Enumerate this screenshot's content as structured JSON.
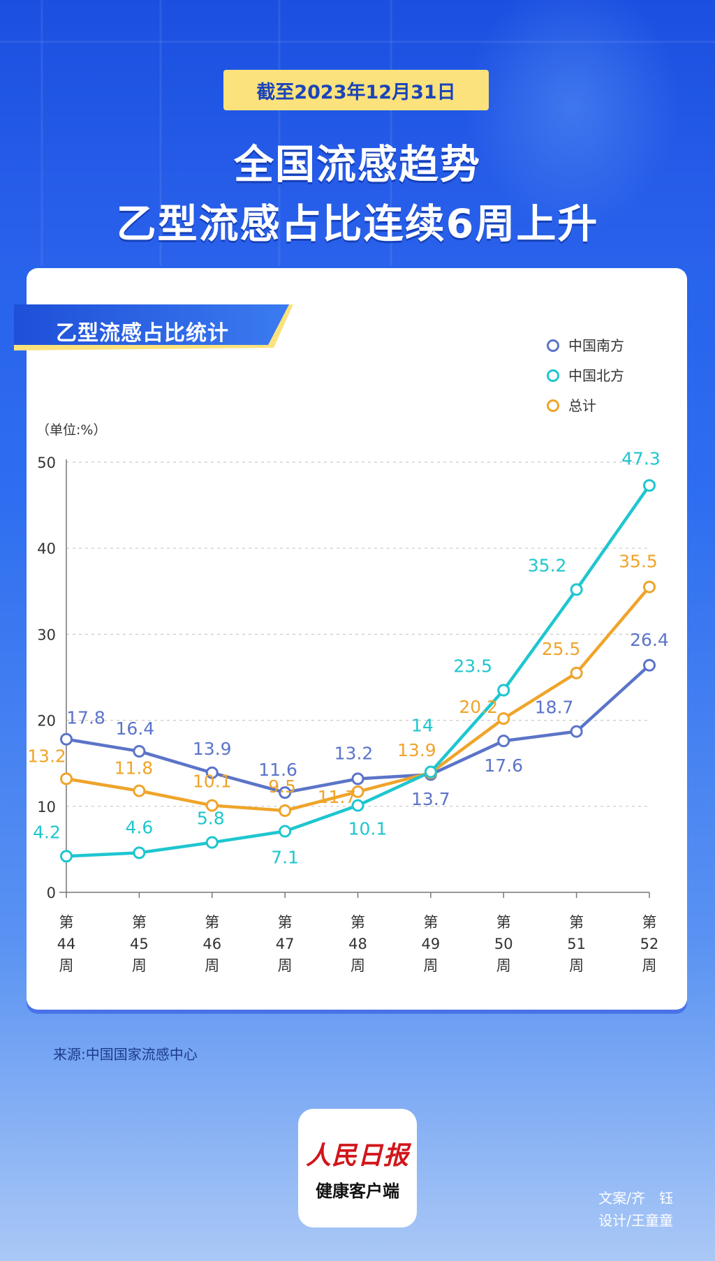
{
  "header": {
    "date_label": "截至2023年12月31日",
    "title_line1": "全国流感趋势",
    "title_line2": "乙型流感占比连续6周上升"
  },
  "card": {
    "banner_label": "乙型流感占比统计"
  },
  "footer": {
    "source": "来源:中国国家流感中心",
    "logo_top": "人民日报",
    "logo_bottom": "健康客户端",
    "credit_writer": "文案/齐　钰",
    "credit_designer": "设计/王童童"
  },
  "colors": {
    "south": "#5b74c8",
    "north": "#1ec6cf",
    "total": "#efa42a",
    "accent_blue": "#2563eb",
    "pill_yellow": "#fbe27c"
  },
  "chart_data": {
    "type": "line",
    "unit_label": "（单位:%）",
    "categories": [
      [
        "第",
        "44",
        "周"
      ],
      [
        "第",
        "45",
        "周"
      ],
      [
        "第",
        "46",
        "周"
      ],
      [
        "第",
        "47",
        "周"
      ],
      [
        "第",
        "48",
        "周"
      ],
      [
        "第",
        "49",
        "周"
      ],
      [
        "第",
        "50",
        "周"
      ],
      [
        "第",
        "51",
        "周"
      ],
      [
        "第",
        "52",
        "周"
      ]
    ],
    "yticks": [
      0,
      10,
      20,
      30,
      40,
      50
    ],
    "ylim": [
      0,
      50
    ],
    "grid": true,
    "legend_position": "top-right",
    "series": [
      {
        "key": "south",
        "name": "中国南方",
        "color": "#5b74c8",
        "values": [
          17.8,
          16.4,
          13.9,
          11.6,
          13.2,
          13.7,
          17.6,
          18.7,
          26.4
        ],
        "labels": [
          "17.8",
          "16.4",
          "13.9",
          "11.6",
          "13.2",
          "13.7",
          "17.6",
          "18.7",
          "26.4"
        ]
      },
      {
        "key": "north",
        "name": "中国北方",
        "color": "#1ec6cf",
        "values": [
          4.2,
          4.6,
          5.8,
          7.1,
          10.1,
          14,
          23.5,
          35.2,
          47.3
        ],
        "labels": [
          "4.2",
          "4.6",
          "5.8",
          "7.1",
          "10.1",
          "14",
          "23.5",
          "35.2",
          "47.3"
        ]
      },
      {
        "key": "total",
        "name": "总计",
        "color": "#efa42a",
        "values": [
          13.2,
          11.8,
          10.1,
          9.5,
          11.7,
          13.9,
          20.2,
          25.5,
          35.5
        ],
        "labels": [
          "13.2",
          "11.8",
          "10.1",
          "9.5",
          "11.7",
          "13.9",
          "20.2",
          "25.5",
          "35.5"
        ]
      }
    ]
  }
}
